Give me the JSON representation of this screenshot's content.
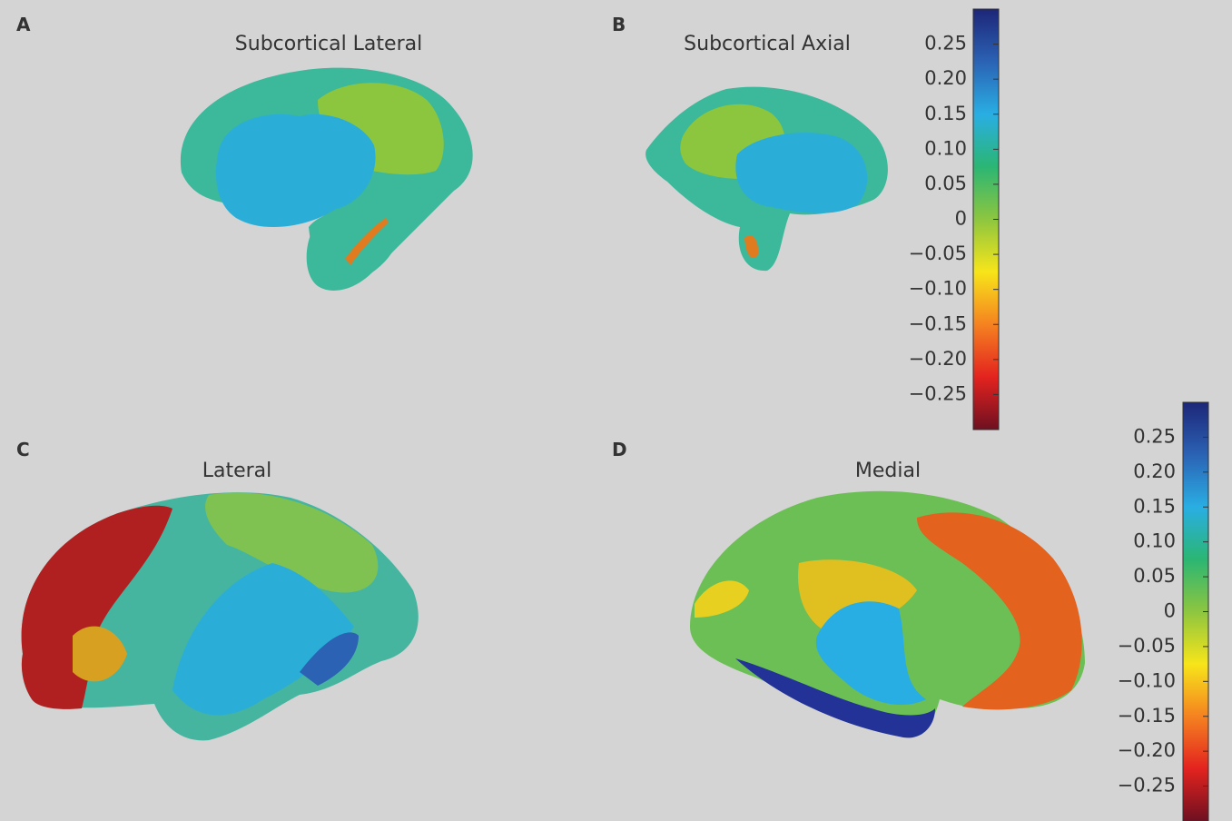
{
  "panels": [
    {
      "letter": "A",
      "title": "Subcortical Lateral"
    },
    {
      "letter": "B",
      "title": "Subcortical Axial"
    },
    {
      "letter": "C",
      "title": "Lateral"
    },
    {
      "letter": "D",
      "title": "Medial"
    }
  ],
  "colorbars": [
    {
      "lim": [
        -0.3,
        0.3
      ],
      "ticks": [
        0.25,
        {
          "value": 0.2,
          "label": "0.20"
        },
        0.15,
        {
          "value": 0.1,
          "label": "0.10"
        },
        0.05,
        0,
        {
          "value": -0.05,
          "label": "−0.05"
        },
        {
          "value": -0.1,
          "label": "−0.10"
        },
        {
          "value": -0.15,
          "label": "−0.15"
        },
        {
          "value": -0.2,
          "label": "−0.20"
        },
        {
          "value": -0.25,
          "label": "−0.25"
        }
      ],
      "colors": [
        "#6e1020",
        "#e3231f",
        "#f58220",
        "#f7e51a",
        "#8dc63f",
        "#2bb673",
        "#29aee3",
        "#2b62b4",
        "#1d2678"
      ]
    },
    {
      "lim": [
        -0.3,
        0.3
      ],
      "ticks": [
        0.25,
        {
          "value": 0.2,
          "label": "0.20"
        },
        0.15,
        {
          "value": 0.1,
          "label": "0.10"
        },
        0.05,
        0,
        {
          "value": -0.05,
          "label": "−0.05"
        },
        {
          "value": -0.1,
          "label": "−0.10"
        },
        {
          "value": -0.15,
          "label": "−0.15"
        },
        {
          "value": -0.2,
          "label": "−0.20"
        },
        {
          "value": -0.25,
          "label": "−0.25"
        }
      ],
      "colors": [
        "#6e1020",
        "#e3231f",
        "#f58220",
        "#f7e51a",
        "#8dc63f",
        "#2bb673",
        "#29aee3",
        "#2b62b4",
        "#1d2678"
      ]
    }
  ]
}
